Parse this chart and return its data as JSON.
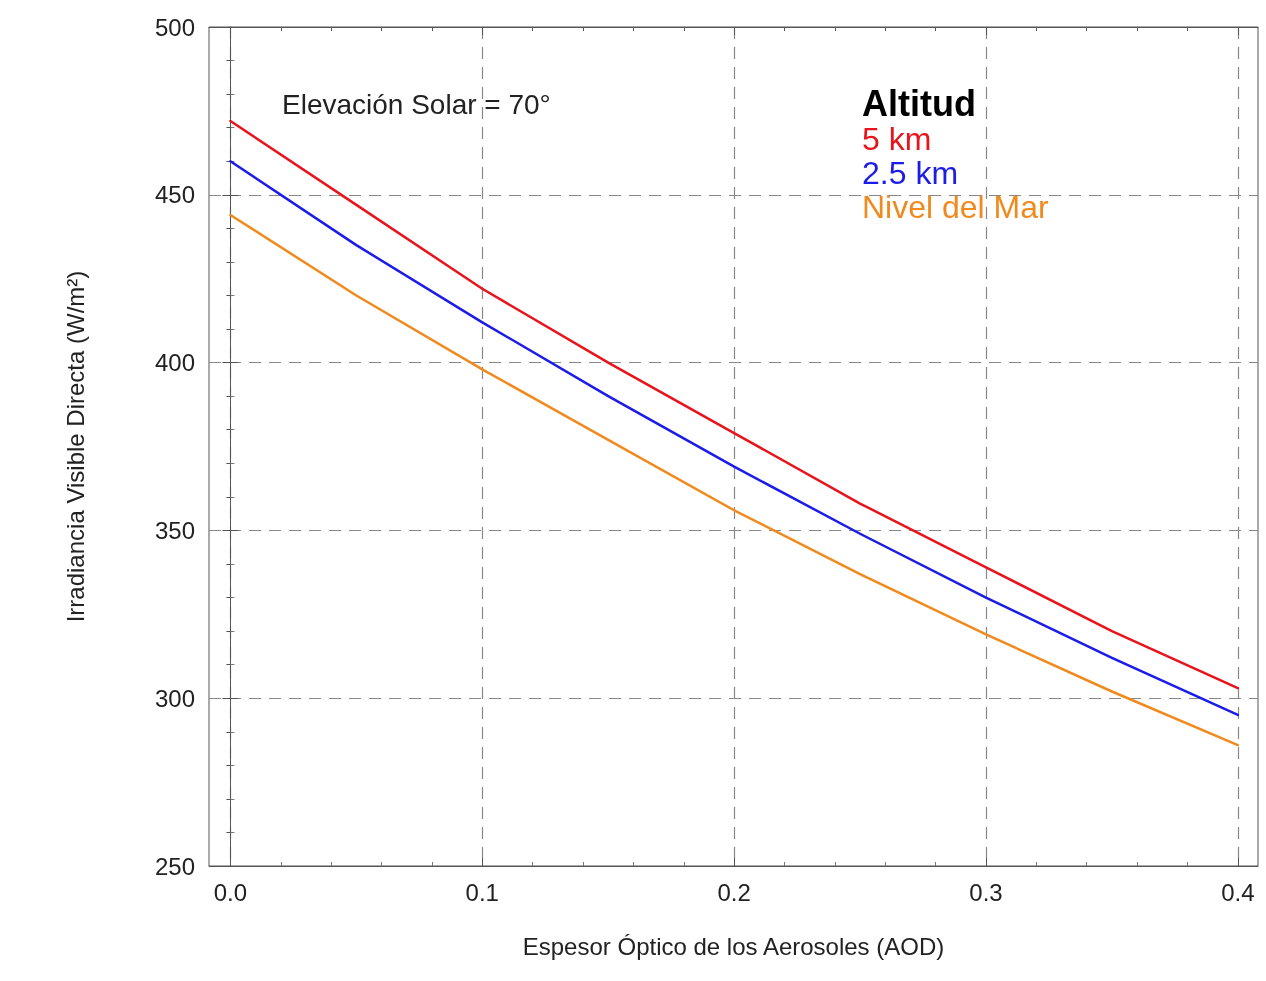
{
  "chart_data": {
    "type": "line",
    "xlabel": "Espesor Óptico de los Aerosoles (AOD)",
    "ylabel": "Irradiancia Visible Directa (W/m²)",
    "legend_title": "Altitud",
    "annotations": [
      "Elevación Solar = 70°"
    ],
    "x": [
      0,
      0.05,
      0.1,
      0.15,
      0.2,
      0.25,
      0.3,
      0.35,
      0.4
    ],
    "series": [
      {
        "name": "5 km",
        "color": "#e8141c",
        "values": [
          472,
          447,
          422,
          400,
          379,
          358,
          339,
          320,
          303
        ]
      },
      {
        "name": "2.5 km",
        "color": "#1c1ce8",
        "values": [
          460,
          435,
          412,
          390,
          369,
          349,
          330,
          312,
          295
        ]
      },
      {
        "name": "Nivel del Mar",
        "color": "#f08a1e",
        "values": [
          444,
          420,
          398,
          377,
          356,
          337,
          319,
          302,
          286
        ]
      }
    ],
    "xlim": [
      -0.0085,
      0.408
    ],
    "xticks": [
      {
        "value": 0,
        "label": "0.0"
      },
      0.1,
      0.2,
      0.3,
      0.4
    ],
    "ylim": [
      250,
      500
    ],
    "yticks": [
      250,
      300,
      350,
      400,
      450,
      500
    ],
    "grid": true,
    "legend": "top right",
    "marker": "none",
    "line_style": "solid"
  }
}
